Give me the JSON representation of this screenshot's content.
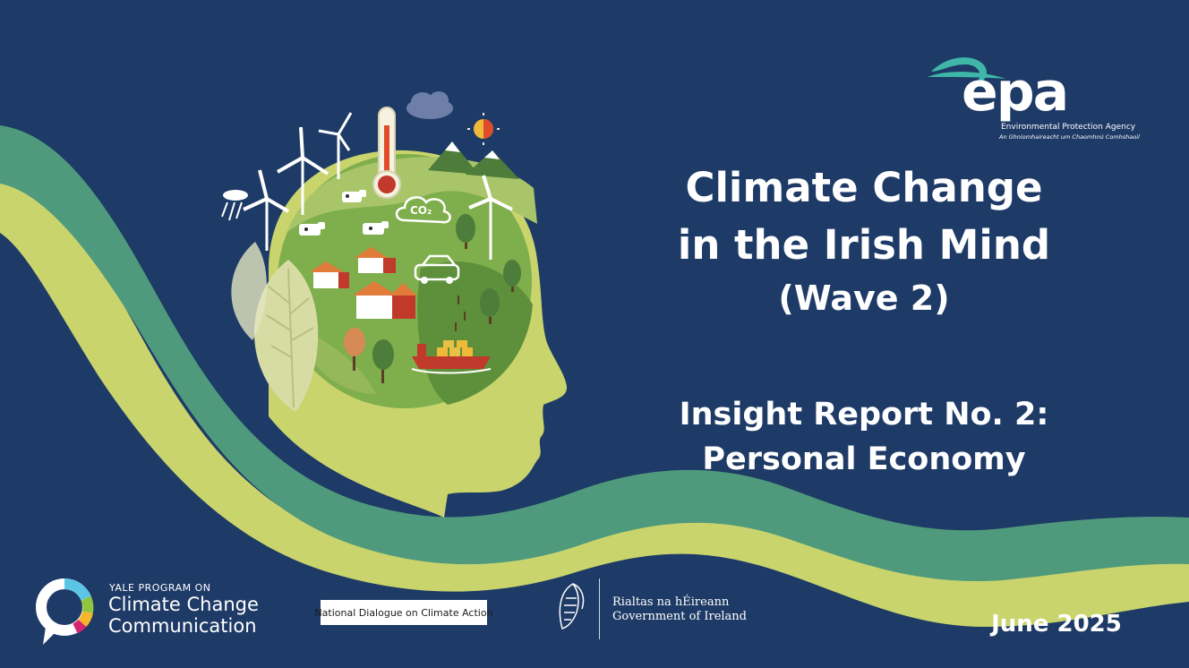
{
  "slide": {
    "title_line1": "Climate Change",
    "title_line2": "in the Irish Mind",
    "title_line3": "(Wave 2)",
    "report_line1": "Insight Report No. 2:",
    "report_line2": "Personal Economy",
    "date": "June 2025"
  },
  "illustration": {
    "co2_label": "CO₂"
  },
  "logos": {
    "epa": {
      "wordmark": "epa",
      "line1": "Environmental Protection Agency",
      "line2": "An Ghníomhaireacht um Chaomhnú Comhshaoil"
    },
    "yale": {
      "top": "YALE PROGRAM ON",
      "line1": "Climate Change",
      "line2": "Communication"
    },
    "ndca": "National Dialogue on Climate Action",
    "gov": {
      "line1": "Rialtas na hÉireann",
      "line2": "Government of Ireland"
    }
  },
  "colors": {
    "background": "#1e3a66",
    "wave_teal": "#4f9a7c",
    "wave_lime": "#c9d46d",
    "head": "#c9d46d",
    "globe_green": "#7fae4c",
    "text": "#ffffff"
  }
}
